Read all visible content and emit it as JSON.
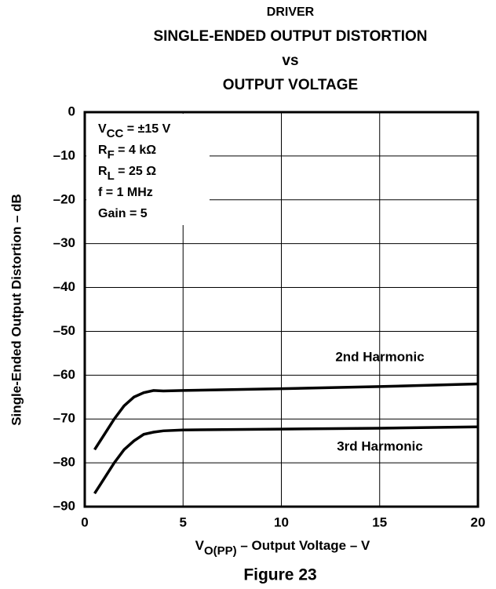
{
  "chart_data": {
    "type": "line",
    "title": [
      "DRIVER",
      "SINGLE-ENDED OUTPUT DISTORTION",
      "vs",
      "OUTPUT VOLTAGE"
    ],
    "xlabel": {
      "text": "V",
      "sub": "O(PP)",
      "rest": " – Output Voltage – V"
    },
    "ylabel": "Single-Ended Output Distortion – dB",
    "caption": "Figure 23",
    "annotation": [
      {
        "text": "V",
        "sub": "CC",
        "rest": " = ±15 V"
      },
      {
        "text": "R",
        "sub": "F",
        "rest": " = 4 kΩ"
      },
      {
        "text": "R",
        "sub": "L",
        "rest": " = 25 Ω"
      },
      {
        "text": "f = 1 MHz"
      },
      {
        "text": "Gain = 5"
      }
    ],
    "x": [
      0.5,
      1,
      1.5,
      2,
      2.5,
      3,
      3.5,
      4,
      5,
      10,
      15,
      20
    ],
    "series": [
      {
        "name": "2nd Harmonic",
        "color": "#000000",
        "values": [
          -77,
          -73.5,
          -70,
          -67,
          -65,
          -64,
          -63.5,
          -63.6,
          -63.5,
          -63.1,
          -62.6,
          -62
        ]
      },
      {
        "name": "3rd Harmonic",
        "color": "#000000",
        "values": [
          -87,
          -83.5,
          -80,
          -77,
          -75,
          -73.5,
          -73,
          -72.7,
          -72.5,
          -72.3,
          -72.1,
          -71.8
        ]
      }
    ],
    "xlim": [
      0,
      20
    ],
    "xticks": [
      0,
      5,
      10,
      15,
      20
    ],
    "ylim": [
      -90,
      0
    ],
    "yticks": [
      {
        "value": -90,
        "label": "–90"
      },
      {
        "value": -80,
        "label": "–80"
      },
      {
        "value": -70,
        "label": "–70"
      },
      {
        "value": -60,
        "label": "–60"
      },
      {
        "value": -50,
        "label": "–50"
      },
      {
        "value": -40,
        "label": "–40"
      },
      {
        "value": -30,
        "label": "–30"
      },
      {
        "value": -20,
        "label": "–20"
      },
      {
        "value": -10,
        "label": "–10"
      },
      0
    ],
    "grid": true
  }
}
